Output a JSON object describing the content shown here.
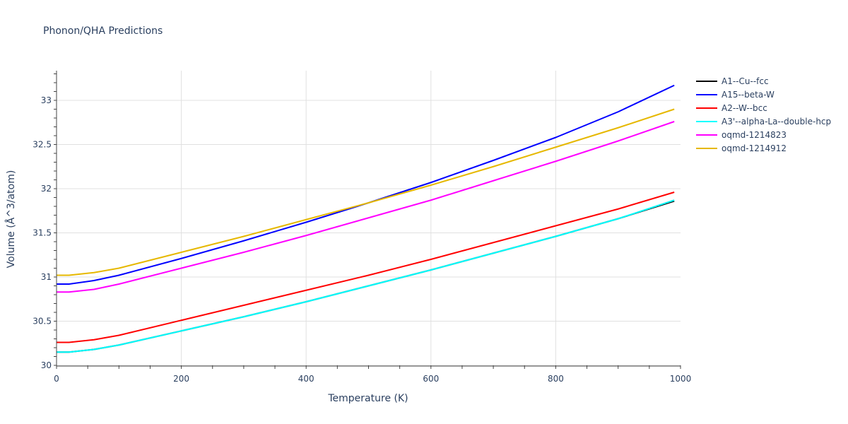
{
  "title": "Phonon/QHA Predictions",
  "chart_data": {
    "type": "line",
    "title": "Phonon/QHA Predictions",
    "xlabel": "Temperature (K)",
    "ylabel": "Volume (Å^3/atom)",
    "xlim": [
      0,
      1000
    ],
    "ylim": [
      29.97,
      33.35
    ],
    "xticks": [
      0,
      200,
      400,
      600,
      800,
      1000
    ],
    "yticks": [
      30,
      30.5,
      31,
      31.5,
      32,
      32.5,
      33
    ],
    "ytick_labels": [
      "30",
      "30.5",
      "31",
      "31.5",
      "32",
      "32.5",
      "33"
    ],
    "xtick_labels": [
      "0",
      "200",
      "400",
      "600",
      "800",
      "1000"
    ],
    "grid": true,
    "legend_position": "right",
    "x": [
      0,
      20,
      60,
      100,
      200,
      300,
      400,
      500,
      600,
      700,
      800,
      900,
      990
    ],
    "series": [
      {
        "name": "A1--Cu--fcc",
        "color": "#000000",
        "values": [
          30.15,
          30.15,
          30.18,
          30.23,
          30.39,
          30.55,
          30.72,
          30.9,
          31.08,
          31.27,
          31.46,
          31.66,
          31.86
        ]
      },
      {
        "name": "A15--beta-W",
        "color": "#0000ff",
        "values": [
          30.92,
          30.92,
          30.96,
          31.02,
          31.21,
          31.41,
          31.62,
          31.84,
          32.07,
          32.32,
          32.58,
          32.87,
          33.17
        ]
      },
      {
        "name": "A2--W--bcc",
        "color": "#ff0000",
        "values": [
          30.26,
          30.26,
          30.29,
          30.34,
          30.51,
          30.68,
          30.85,
          31.02,
          31.2,
          31.39,
          31.58,
          31.77,
          31.96
        ]
      },
      {
        "name": "A3'--alpha-La--double-hcp",
        "color": "#00ffff",
        "values": [
          30.15,
          30.15,
          30.18,
          30.23,
          30.39,
          30.55,
          30.72,
          30.9,
          31.08,
          31.27,
          31.46,
          31.66,
          31.87
        ]
      },
      {
        "name": "oqmd-1214823",
        "color": "#ff00ff",
        "values": [
          30.83,
          30.83,
          30.86,
          30.92,
          31.1,
          31.28,
          31.47,
          31.67,
          31.87,
          32.09,
          32.31,
          32.54,
          32.76
        ]
      },
      {
        "name": "oqmd-1214912",
        "color": "#e6b800",
        "values": [
          31.02,
          31.02,
          31.05,
          31.1,
          31.28,
          31.46,
          31.65,
          31.84,
          32.04,
          32.25,
          32.47,
          32.69,
          32.9
        ]
      }
    ]
  }
}
